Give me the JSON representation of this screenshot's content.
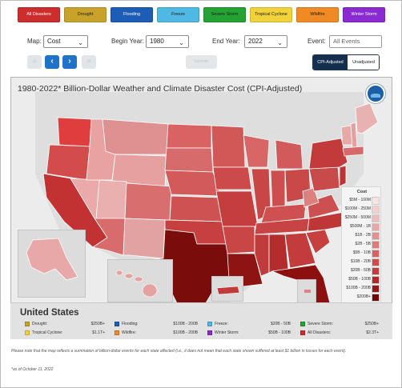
{
  "disaster_types": [
    {
      "label": "All Disasters",
      "color": "#cc2e2e",
      "text_color": "#ffffff"
    },
    {
      "label": "Drought",
      "color": "#c9a22b",
      "text_color": "#1b1b1b"
    },
    {
      "label": "Flooding",
      "color": "#1e5db6",
      "text_color": "#ffffff"
    },
    {
      "label": "Freeze",
      "color": "#4fb9e3",
      "text_color": "#1b1b1b"
    },
    {
      "label": "Severe Storm",
      "color": "#25a234",
      "text_color": "#1b1b1b"
    },
    {
      "label": "Tropical Cyclone",
      "color": "#f2d23a",
      "text_color": "#1b1b1b"
    },
    {
      "label": "Wildfire",
      "color": "#f08a24",
      "text_color": "#1b1b1b"
    },
    {
      "label": "Winter Storm",
      "color": "#8a2ad1",
      "text_color": "#ffffff"
    }
  ],
  "controls": {
    "map_label": "Map:",
    "map_value": "Cost",
    "begin_label": "Begin Year:",
    "begin_value": "1980",
    "end_label": "End Year:",
    "end_value": "2022",
    "event_label": "Event:",
    "event_placeholder": "All Events",
    "update_label": "Update",
    "cpi_adjusted_label": "CPI-Adjusted",
    "unadjusted_label": "Unadjusted"
  },
  "nav": {
    "first_glyph": "«",
    "prev_glyph": "‹",
    "next_glyph": "›",
    "last_glyph": "»"
  },
  "map": {
    "title": "1980-2022* Billion-Dollar Weather and Climate Disaster Cost (CPI-Adjusted)",
    "legend": {
      "title": "Cost",
      "items": [
        {
          "label": "$5M - 100M",
          "color": "#f7e4e4"
        },
        {
          "label": "$100M - 250M",
          "color": "#f2d0d0"
        },
        {
          "label": "$250M - 500M",
          "color": "#eebcbc"
        },
        {
          "label": "$500M - 1B",
          "color": "#e8a6a6"
        },
        {
          "label": "$1B - 2B",
          "color": "#e39090"
        },
        {
          "label": "$2B - 5B",
          "color": "#dd7a7a"
        },
        {
          "label": "$5B - 10B",
          "color": "#d66262"
        },
        {
          "label": "$10B - 20B",
          "color": "#cf4c4c"
        },
        {
          "label": "$20B - 50B",
          "color": "#c23a3a"
        },
        {
          "label": "$50B - 100B",
          "color": "#b02828"
        },
        {
          "label": "$100B - 200B",
          "color": "#941818"
        },
        {
          "label": "$200B+",
          "color": "#6e0a0a"
        }
      ]
    }
  },
  "summary": {
    "title": "United States",
    "items": [
      {
        "name": "Drought:",
        "value": "$250B+",
        "color": "#c9a22b"
      },
      {
        "name": "Flooding:",
        "value": "$100B - 200B",
        "color": "#1e5db6"
      },
      {
        "name": "Freeze:",
        "value": "$20B - 50B",
        "color": "#4fb9e3"
      },
      {
        "name": "Severe Storm:",
        "value": "$250B+",
        "color": "#25a234"
      },
      {
        "name": "Tropical Cyclone:",
        "value": "$1.1T+",
        "color": "#f2d23a"
      },
      {
        "name": "Wildfire:",
        "value": "$100B - 200B",
        "color": "#f08a24"
      },
      {
        "name": "Winter Storm:",
        "value": "$50B - 100B",
        "color": "#8a2ad1"
      },
      {
        "name": "All Disasters:",
        "value": "$2.3T+",
        "color": "#cc2e2e"
      }
    ]
  },
  "footnote": "Please note that the map reflects a summation of billion-dollar events for each state affected (i.e., it does not mean that each state shown suffered at least $1 billion in losses for each event).",
  "as_of": "*as of October 11, 2022"
}
